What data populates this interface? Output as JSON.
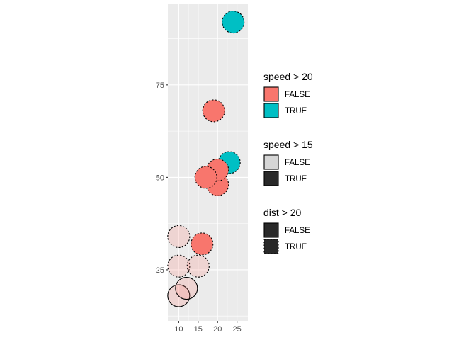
{
  "chart_data": {
    "type": "scatter",
    "title": "",
    "xlabel": "",
    "ylabel": "",
    "xlim": [
      7.2,
      27.8
    ],
    "ylim": [
      11.2,
      96.8
    ],
    "x_ticks": [
      10,
      15,
      20,
      25
    ],
    "y_ticks": [
      25,
      50,
      75
    ],
    "grid": true,
    "legend_position": "right",
    "colors": {
      "false": "#F8766D",
      "true": "#00BFC4",
      "panel": "#EBEBEB",
      "grid": "#FFFFFF"
    },
    "points": [
      {
        "x": 10,
        "y": 18,
        "fill_group": "FALSE",
        "alpha_group": "FALSE",
        "line_group": "FALSE"
      },
      {
        "x": 12,
        "y": 20,
        "fill_group": "FALSE",
        "alpha_group": "FALSE",
        "line_group": "FALSE"
      },
      {
        "x": 10,
        "y": 26,
        "fill_group": "FALSE",
        "alpha_group": "FALSE",
        "line_group": "TRUE"
      },
      {
        "x": 15,
        "y": 26,
        "fill_group": "FALSE",
        "alpha_group": "FALSE",
        "line_group": "TRUE"
      },
      {
        "x": 10,
        "y": 34,
        "fill_group": "FALSE",
        "alpha_group": "FALSE",
        "line_group": "TRUE"
      },
      {
        "x": 16,
        "y": 32,
        "fill_group": "FALSE",
        "alpha_group": "TRUE",
        "line_group": "TRUE"
      },
      {
        "x": 20,
        "y": 48,
        "fill_group": "FALSE",
        "alpha_group": "TRUE",
        "line_group": "TRUE"
      },
      {
        "x": 23,
        "y": 54,
        "fill_group": "TRUE",
        "alpha_group": "TRUE",
        "line_group": "TRUE"
      },
      {
        "x": 20,
        "y": 52,
        "fill_group": "FALSE",
        "alpha_group": "TRUE",
        "line_group": "TRUE"
      },
      {
        "x": 17,
        "y": 50,
        "fill_group": "FALSE",
        "alpha_group": "TRUE",
        "line_group": "TRUE"
      },
      {
        "x": 19,
        "y": 68,
        "fill_group": "FALSE",
        "alpha_group": "TRUE",
        "line_group": "TRUE"
      },
      {
        "x": 24,
        "y": 92,
        "fill_group": "TRUE",
        "alpha_group": "TRUE",
        "line_group": "TRUE"
      }
    ],
    "legends": [
      {
        "title": "speed > 20",
        "aesthetic": "fill",
        "entries": [
          {
            "label": "FALSE",
            "group": "FALSE"
          },
          {
            "label": "TRUE",
            "group": "TRUE"
          }
        ]
      },
      {
        "title": "speed > 15",
        "aesthetic": "alpha",
        "entries": [
          {
            "label": "FALSE",
            "group": "FALSE"
          },
          {
            "label": "TRUE",
            "group": "TRUE"
          }
        ]
      },
      {
        "title": "dist > 20",
        "aesthetic": "linetype",
        "entries": [
          {
            "label": "FALSE",
            "group": "FALSE"
          },
          {
            "label": "TRUE",
            "group": "TRUE"
          }
        ]
      }
    ]
  }
}
